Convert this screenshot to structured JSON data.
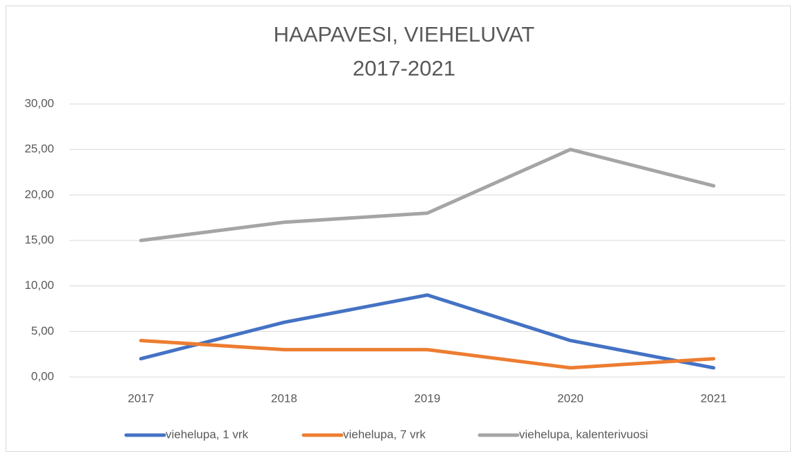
{
  "chart_data": {
    "type": "line",
    "title": "HAAPAVESI, VIEHELUVAT",
    "subtitle": "2017-2021",
    "categories": [
      "2017",
      "2018",
      "2019",
      "2020",
      "2021"
    ],
    "series": [
      {
        "name": "viehelupa, 1 vrk",
        "color": "#4472c4",
        "values": [
          2,
          6,
          9,
          4,
          1
        ]
      },
      {
        "name": "viehelupa, 7 vrk",
        "color": "#ed7d31",
        "values": [
          4,
          3,
          3,
          1,
          2
        ]
      },
      {
        "name": "viehelupa, kalenterivuosi",
        "color": "#a5a5a5",
        "values": [
          15,
          17,
          18,
          25,
          21
        ]
      }
    ],
    "ylim": [
      0,
      30
    ],
    "yticks": [
      {
        "value": 0,
        "label": "0,00"
      },
      {
        "value": 5,
        "label": "5,00"
      },
      {
        "value": 10,
        "label": "10,00"
      },
      {
        "value": 15,
        "label": "15,00"
      },
      {
        "value": 20,
        "label": "20,00"
      },
      {
        "value": 25,
        "label": "25,00"
      },
      {
        "value": 30,
        "label": "30,00"
      }
    ],
    "grid": true,
    "legend": "bottom"
  }
}
